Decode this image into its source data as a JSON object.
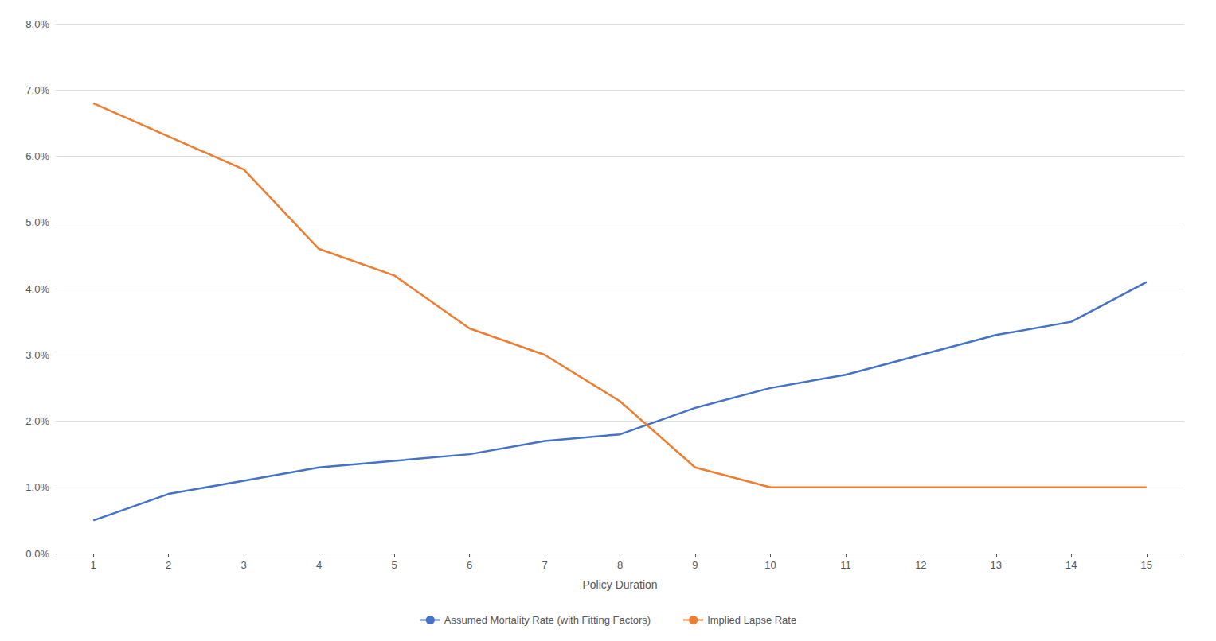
{
  "chart_data": {
    "type": "line",
    "x": [
      1,
      2,
      3,
      4,
      5,
      6,
      7,
      8,
      9,
      10,
      11,
      12,
      13,
      14,
      15
    ],
    "series": [
      {
        "name": "Assumed Mortality Rate (with Fitting Factors)",
        "color": "#4472C4",
        "values": [
          0.005,
          0.009,
          0.011,
          0.013,
          0.014,
          0.015,
          0.017,
          0.018,
          0.022,
          0.025,
          0.027,
          0.03,
          0.033,
          0.035,
          0.041
        ]
      },
      {
        "name": "Implied Lapse Rate",
        "color": "#ED7D31",
        "values": [
          0.068,
          0.063,
          0.058,
          0.046,
          0.042,
          0.034,
          0.03,
          0.023,
          0.013,
          0.01,
          0.01,
          0.01,
          0.01,
          0.01,
          0.01
        ]
      }
    ],
    "x_label": "Policy Duration",
    "xlim": [
      0.5,
      15.5
    ],
    "xticks": [
      1,
      2,
      3,
      4,
      5,
      6,
      7,
      8,
      9,
      10,
      11,
      12,
      13,
      14,
      15
    ],
    "ylim": [
      0.0,
      0.08
    ],
    "yticks": [
      {
        "value": 0.0,
        "label": "0.0%"
      },
      {
        "value": 0.01,
        "label": "1.0%"
      },
      {
        "value": 0.02,
        "label": "2.0%"
      },
      {
        "value": 0.03,
        "label": "3.0%"
      },
      {
        "value": 0.04,
        "label": "4.0%"
      },
      {
        "value": 0.05,
        "label": "5.0%"
      },
      {
        "value": 0.06,
        "label": "6.0%"
      },
      {
        "value": 0.07,
        "label": "7.0%"
      },
      {
        "value": 0.08,
        "label": "8.0%"
      }
    ],
    "grid": "y",
    "legend": "bottom"
  }
}
